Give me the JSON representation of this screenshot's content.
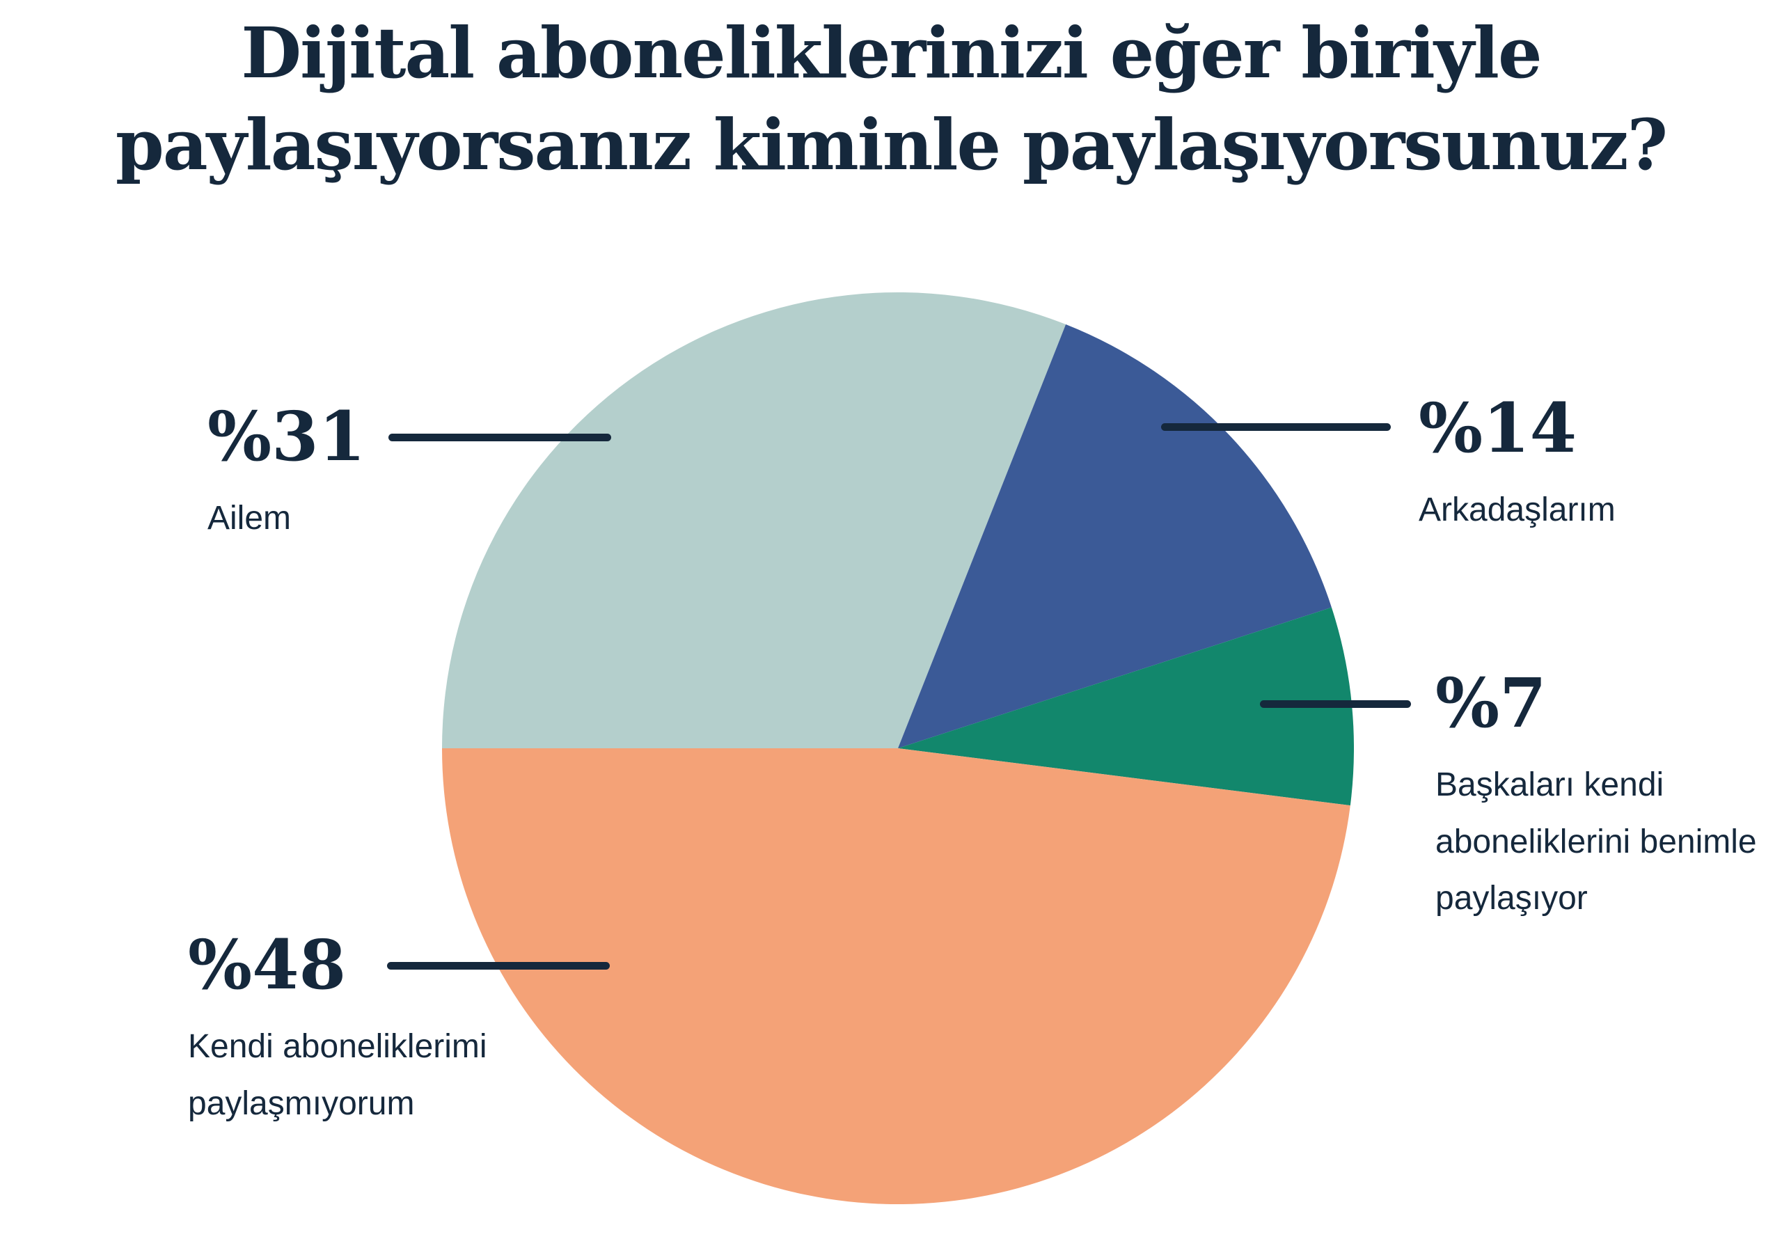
{
  "title": "Dijital aboneliklerinizi eğer biriyle paylaşıyorsanız kiminle paylaşıyorsunuz?",
  "title_lines": [
    "Dijital aboneliklerinizi eğer biriyle",
    "paylaşıyorsanız kiminle paylaşıyorsunuz?"
  ],
  "colors": {
    "background": "#ffffff",
    "text": "#15283c",
    "leader_line": "#15283c"
  },
  "chart_data": {
    "type": "pie",
    "title": "Dijital aboneliklerinizi eğer biriyle paylaşıyorsanız kiminle paylaşıyorsunuz?",
    "unit": "percent",
    "percent_prefix": "%",
    "start_angle_deg": 180,
    "direction": "clockwise",
    "legend_position": "callouts",
    "categories": [
      "Ailem",
      "Arkadaşlarım",
      "Başkaları kendi aboneliklerini benimle paylaşıyor",
      "Kendi aboneliklerimi paylaşmıyorum"
    ],
    "values": [
      31,
      14,
      7,
      48
    ],
    "segments": [
      {
        "label": "Ailem",
        "value": 31,
        "value_label": "%31",
        "color": "#b4cfcc"
      },
      {
        "label": "Arkadaşlarım",
        "value": 14,
        "value_label": "%14",
        "color": "#3b5a97"
      },
      {
        "label": "Başkaları kendi aboneliklerini benimle paylaşıyor",
        "value": 7,
        "value_label": "%7",
        "color": "#12876c"
      },
      {
        "label": "Kendi aboneliklerimi paylaşmıyorum",
        "value": 48,
        "value_label": "%48",
        "color": "#f4a277"
      }
    ]
  }
}
